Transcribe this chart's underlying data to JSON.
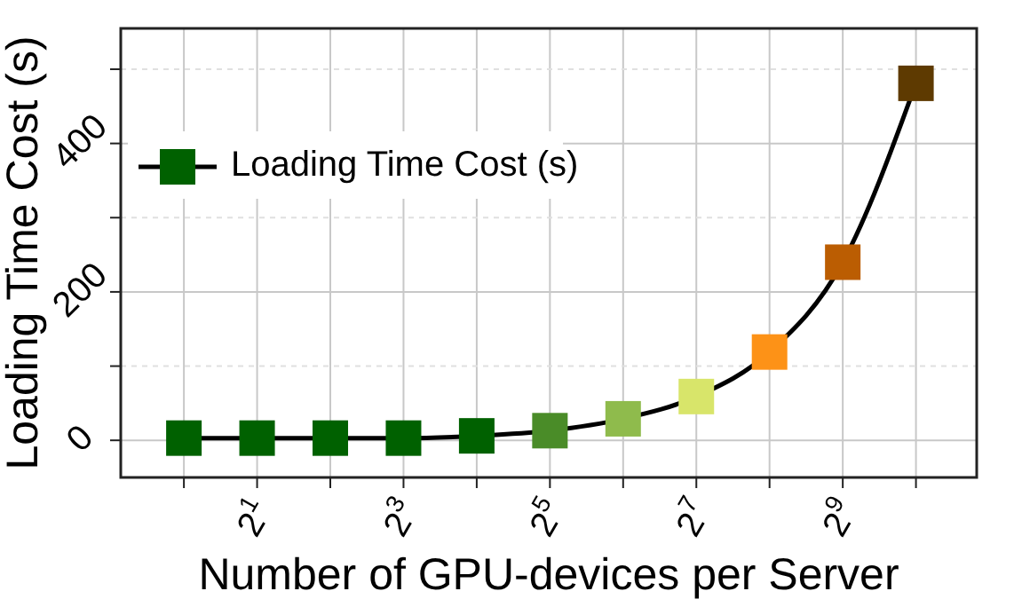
{
  "chart_data": {
    "type": "line",
    "xlabel": "Number of GPU-devices per Server",
    "ylabel": "Loading Time Cost (s)",
    "x": [
      1,
      2,
      4,
      8,
      16,
      32,
      64,
      128,
      256,
      512,
      1024
    ],
    "series": [
      {
        "name": "Loading Time Cost (s)",
        "color": "#000000",
        "colors": [
          "#006100",
          "#006100",
          "#006100",
          "#006100",
          "#006100",
          "#4a8c28",
          "#8fbb4c",
          "#d8e56a",
          "#fd9217",
          "#bb5d02",
          "#5e3a01"
        ],
        "values": [
          3,
          3,
          3,
          3,
          6,
          13,
          29,
          59,
          119,
          240,
          481
        ]
      }
    ],
    "log": "x",
    "xlim": [
      0.55,
      1820
    ],
    "xticks": [
      {
        "value": 1,
        "label": null
      },
      {
        "value": 2,
        "label": "2$^{1}$"
      },
      {
        "value": 4,
        "label": null
      },
      {
        "value": 8,
        "label": "2$^{3}$"
      },
      {
        "value": 16,
        "label": null
      },
      {
        "value": 32,
        "label": "2$^{5}$"
      },
      {
        "value": 64,
        "label": null
      },
      {
        "value": 128,
        "label": "2$^{7}$"
      },
      {
        "value": 256,
        "label": null
      },
      {
        "value": 512,
        "label": "2$^{9}$"
      },
      {
        "value": 1024,
        "label": null
      }
    ],
    "ylim": [
      -50,
      555
    ],
    "yticks": [
      0,
      {
        "value": 100,
        "label": null
      },
      200,
      {
        "value": 300,
        "label": null
      },
      400,
      {
        "value": 500,
        "label": null
      }
    ],
    "grid": true,
    "legend": "top left",
    "marker": "square",
    "line_style": "solid"
  }
}
